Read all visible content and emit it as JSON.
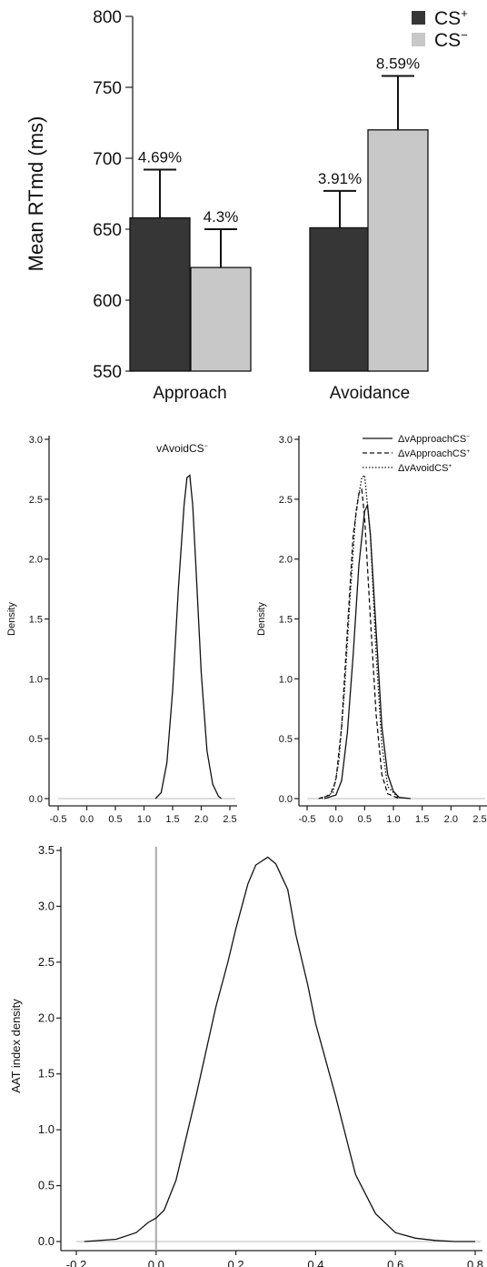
{
  "chart_data": [
    {
      "type": "bar",
      "ylabel": "Mean RTmd (ms)",
      "ylim": [
        550,
        800
      ],
      "yticks": [
        550,
        600,
        650,
        700,
        750,
        800
      ],
      "categories": [
        "Approach",
        "Avoidance"
      ],
      "legend_position": "top-right",
      "series": [
        {
          "name": "CS",
          "sup": "+",
          "color": "#363636",
          "values": [
            658,
            651
          ],
          "error_upper": [
            692,
            677
          ],
          "labels": [
            "4.69%",
            "3.91%"
          ]
        },
        {
          "name": "CS",
          "sup": "−",
          "color": "#c8c8c8",
          "values": [
            623,
            720
          ],
          "error_upper": [
            650,
            758
          ],
          "labels": [
            "4.3%",
            "8.59%"
          ]
        }
      ]
    },
    {
      "type": "line",
      "ylabel": "Density",
      "xlim": [
        -0.5,
        2.5
      ],
      "ylim": [
        0,
        3.0
      ],
      "xticks": [
        "-0.5",
        "0.0",
        "0.5",
        "1.0",
        "1.5",
        "2.0",
        "2.5"
      ],
      "yticks": [
        "0.0",
        "0.5",
        "1.0",
        "1.5",
        "2.0",
        "2.5",
        "3.0"
      ],
      "annotation": {
        "text": "vAvoidCS",
        "sup": "−"
      },
      "series": [
        {
          "x": [
            1.2,
            1.3,
            1.4,
            1.5,
            1.6,
            1.7,
            1.75,
            1.8,
            1.85,
            1.9,
            2.0,
            2.1,
            2.2,
            2.3,
            2.35
          ],
          "y": [
            0.0,
            0.05,
            0.3,
            0.9,
            1.75,
            2.45,
            2.68,
            2.7,
            2.45,
            2.0,
            1.05,
            0.4,
            0.12,
            0.02,
            0.0
          ]
        }
      ]
    },
    {
      "type": "line",
      "ylabel": "Density",
      "xlim": [
        -0.5,
        2.5
      ],
      "ylim": [
        0,
        3.0
      ],
      "xticks": [
        "-0.5",
        "0.0",
        "0.5",
        "1.0",
        "1.5",
        "2.0",
        "2.5"
      ],
      "yticks": [
        "0.0",
        "0.5",
        "1.0",
        "1.5",
        "2.0",
        "2.5",
        "3.0"
      ],
      "legend_position": "top-right",
      "series": [
        {
          "name": "ΔvApproachCS",
          "sup": "−",
          "dash": "solid",
          "x": [
            -0.2,
            0.0,
            0.1,
            0.2,
            0.3,
            0.4,
            0.5,
            0.55,
            0.6,
            0.7,
            0.8,
            0.9,
            1.0,
            1.1,
            1.3
          ],
          "y": [
            0.0,
            0.03,
            0.15,
            0.55,
            1.2,
            1.95,
            2.4,
            2.45,
            2.2,
            1.4,
            0.6,
            0.2,
            0.06,
            0.01,
            0.0
          ]
        },
        {
          "name": "ΔvApproachCS",
          "sup": "+",
          "dash": "dashed",
          "x": [
            -0.3,
            -0.1,
            0.0,
            0.1,
            0.2,
            0.3,
            0.4,
            0.45,
            0.5,
            0.6,
            0.7,
            0.8,
            0.9,
            1.1
          ],
          "y": [
            0.0,
            0.03,
            0.15,
            0.6,
            1.4,
            2.2,
            2.55,
            2.58,
            2.35,
            1.5,
            0.7,
            0.2,
            0.04,
            0.0
          ]
        },
        {
          "name": "ΔvAvoidCS",
          "sup": "+",
          "dash": "dotted",
          "x": [
            -0.25,
            -0.05,
            0.05,
            0.15,
            0.25,
            0.35,
            0.45,
            0.5,
            0.6,
            0.7,
            0.8,
            0.9,
            1.1
          ],
          "y": [
            0.0,
            0.05,
            0.3,
            0.9,
            1.7,
            2.4,
            2.68,
            2.7,
            2.2,
            1.2,
            0.45,
            0.1,
            0.0
          ]
        }
      ]
    },
    {
      "type": "line",
      "ylabel": "AAT index density",
      "xlim": [
        -0.2,
        0.8
      ],
      "ylim": [
        0,
        3.5
      ],
      "xticks": [
        "-0.2",
        "0.0",
        "0.2",
        "0.4",
        "0.6",
        "0.8"
      ],
      "yticks": [
        "0.0",
        "0.5",
        "1.0",
        "1.5",
        "2.0",
        "2.5",
        "3.0",
        "3.5"
      ],
      "vline_x": 0.0,
      "series": [
        {
          "x": [
            -0.18,
            -0.1,
            -0.05,
            -0.02,
            0.0,
            0.02,
            0.05,
            0.1,
            0.15,
            0.18,
            0.2,
            0.23,
            0.25,
            0.28,
            0.3,
            0.33,
            0.35,
            0.38,
            0.4,
            0.45,
            0.5,
            0.55,
            0.6,
            0.65,
            0.7,
            0.75,
            0.8
          ],
          "y": [
            0.0,
            0.02,
            0.08,
            0.17,
            0.21,
            0.28,
            0.55,
            1.3,
            2.1,
            2.5,
            2.8,
            3.2,
            3.37,
            3.44,
            3.38,
            3.15,
            2.75,
            2.3,
            1.95,
            1.3,
            0.6,
            0.25,
            0.08,
            0.03,
            0.01,
            0.0,
            0.0
          ]
        }
      ]
    }
  ]
}
